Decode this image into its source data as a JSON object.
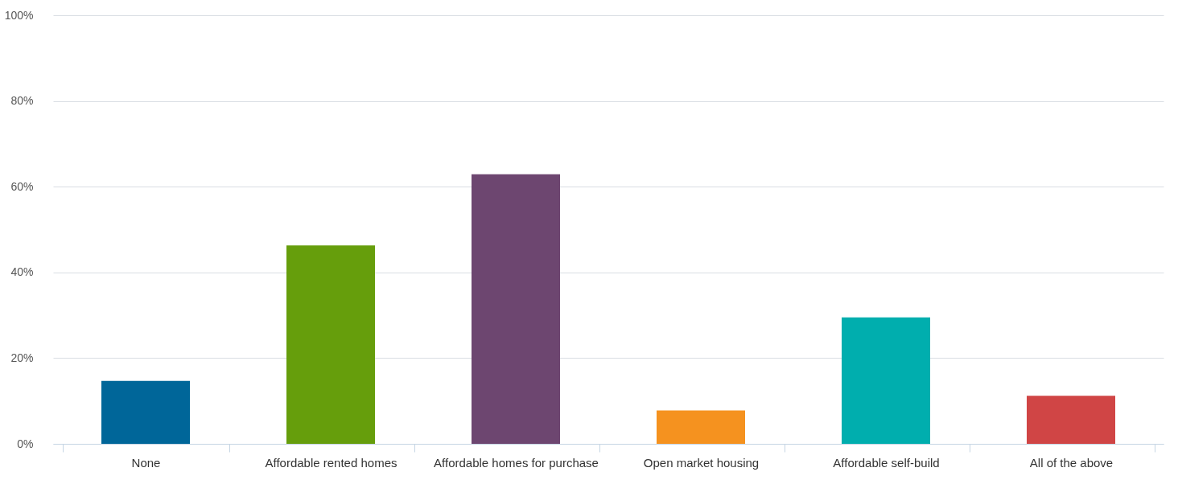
{
  "chart_data": {
    "type": "bar",
    "categories": [
      "None",
      "Affordable rented homes",
      "Affordable homes for purchase",
      "Open market housing",
      "Affordable self-build",
      "All of the above"
    ],
    "values": [
      14.7,
      46.3,
      62.9,
      7.8,
      29.5,
      11.2
    ],
    "colors": [
      "#006699",
      "#669e0c",
      "#6d4670",
      "#f5921f",
      "#00aeae",
      "#d04545"
    ],
    "ylim": [
      0,
      100
    ],
    "yticks": [
      {
        "value": 0,
        "label": "0%"
      },
      {
        "value": 20,
        "label": "20%"
      },
      {
        "value": 40,
        "label": "40%"
      },
      {
        "value": 60,
        "label": "60%"
      },
      {
        "value": 80,
        "label": "80%"
      },
      {
        "value": 100,
        "label": "100%"
      }
    ],
    "grid": "y"
  }
}
